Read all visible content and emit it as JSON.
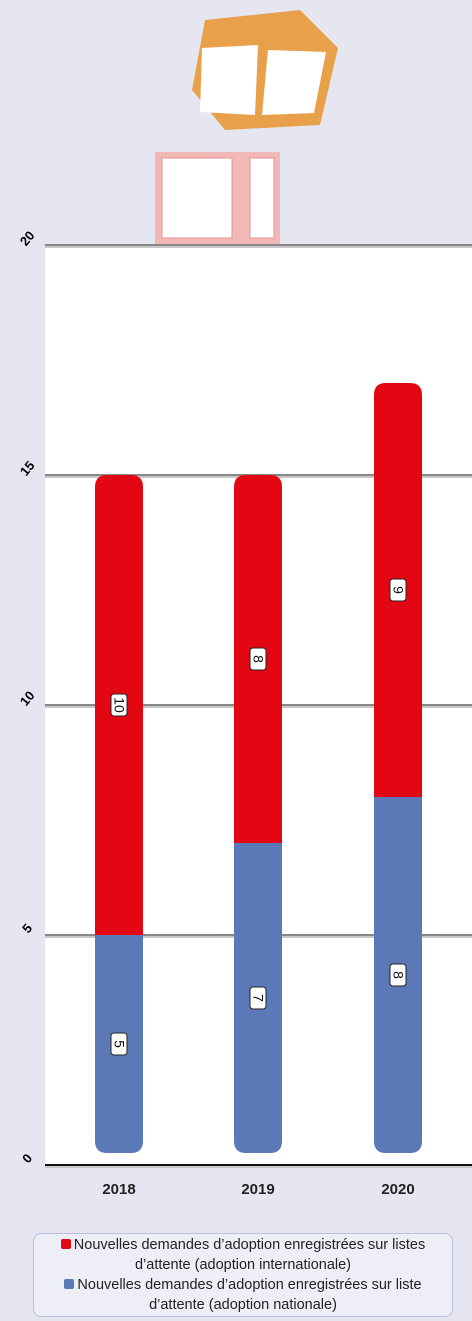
{
  "chart_data": {
    "type": "stacked-bar",
    "categories": [
      "2018",
      "2019",
      "2020"
    ],
    "series": [
      {
        "name": "Nouvelles demandes d’adoption enregistrées sur liste d’attente (adoption nationale)",
        "color": "#5b79b6",
        "values": [
          5,
          7,
          8
        ]
      },
      {
        "name": "Nouvelles demandes d’adoption enregistrées sur listes d’attente (adoption internationale)",
        "color": "#e30613",
        "values": [
          10,
          8,
          9
        ]
      }
    ],
    "ylim": [
      0,
      20
    ],
    "yticks": [
      0,
      5,
      10,
      15,
      20
    ],
    "grid": true
  }
}
